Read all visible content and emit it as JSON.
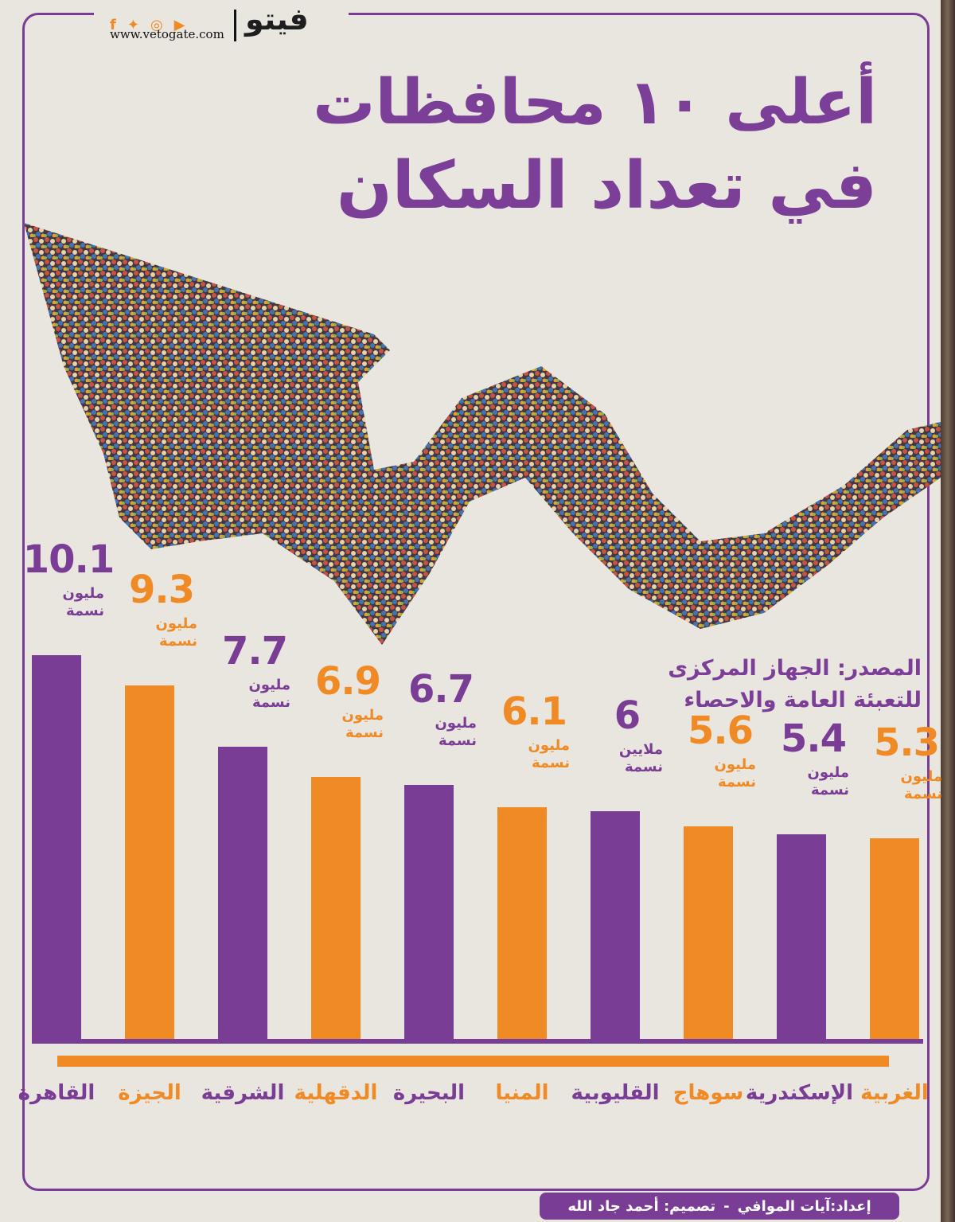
{
  "header": {
    "site_url": "www.vetogate.com",
    "logo_text": "فيتو",
    "social_icons": [
      "facebook-icon",
      "twitter-icon",
      "instagram-icon",
      "youtube-icon"
    ]
  },
  "title": {
    "line1": "أعلى ١٠ محافظات",
    "line2": "في تعداد السكان"
  },
  "source": {
    "line1": "المصدر: الجهاز المركزى",
    "line2": "للتعبئة العامة والاحصاء"
  },
  "credit": {
    "prepared": "إعداد:آيات الموافي",
    "separator": "-",
    "design": "تصميم: أحمد جاد الله"
  },
  "colors": {
    "purple": "#7a3d96",
    "orange": "#f08a24"
  },
  "chart_data": {
    "type": "bar",
    "categories": [
      "القاهرة",
      "الجيزة",
      "الشرقية",
      "الدقهلية",
      "البحيرة",
      "المنيا",
      "القليوبية",
      "سوهاج",
      "الإسكندرية",
      "الغربية"
    ],
    "values": [
      10.1,
      9.3,
      7.7,
      6.9,
      6.7,
      6.1,
      6,
      5.6,
      5.4,
      5.3
    ],
    "value_labels": [
      "10.1",
      "9.3",
      "7.7",
      "6.9",
      "6.7",
      "6.1",
      "6",
      "5.6",
      "5.4",
      "5.3"
    ],
    "unit_line1": [
      "مليون",
      "مليون",
      "مليون",
      "مليون",
      "مليون",
      "مليون",
      "ملايين",
      "مليون",
      "مليون",
      "مليون"
    ],
    "unit_line2": [
      "نسمة",
      "نسمة",
      "نسمة",
      "نسمة",
      "نسمة",
      "نسمة",
      "نسمة",
      "نسمة",
      "نسمة",
      "نسمة"
    ],
    "bar_colors": [
      "#7a3d96",
      "#f08a24",
      "#7a3d96",
      "#f08a24",
      "#7a3d96",
      "#f08a24",
      "#7a3d96",
      "#f08a24",
      "#7a3d96",
      "#f08a24"
    ],
    "title": "أعلى ١٠ محافظات في تعداد السكان",
    "xlabel": "",
    "ylabel": "",
    "grid": false
  }
}
